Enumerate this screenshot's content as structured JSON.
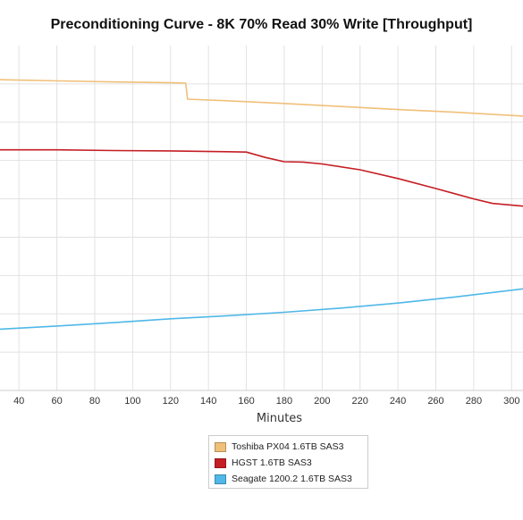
{
  "chart_data": {
    "type": "line",
    "title": "Preconditioning Curve - 8K 70% Read 30% Write [Throughput]",
    "xlabel": "Minutes",
    "ylabel": "",
    "x_ticks": [
      40,
      60,
      80,
      100,
      120,
      140,
      160,
      180,
      200,
      220,
      240,
      260,
      280,
      300
    ],
    "xlim": [
      30,
      306
    ],
    "ylim": [
      0,
      9
    ],
    "y_gridlines": [
      1,
      2,
      3,
      4,
      5,
      6,
      7,
      8
    ],
    "grid": true,
    "legend_position": "bottom-center",
    "series": [
      {
        "name": "Toshiba PX04 1.6TB SAS3",
        "color": "#f0c07a",
        "x": [
          30,
          60,
          90,
          120,
          128,
          129,
          150,
          180,
          210,
          240,
          270,
          306
        ],
        "y": [
          8.11,
          8.08,
          8.05,
          8.03,
          8.02,
          7.6,
          7.56,
          7.49,
          7.41,
          7.33,
          7.26,
          7.16
        ]
      },
      {
        "name": "HGST 1.6TB SAS3",
        "color": "#c41e24",
        "x": [
          30,
          60,
          90,
          120,
          150,
          160,
          170,
          180,
          190,
          200,
          220,
          240,
          260,
          280,
          290,
          306
        ],
        "y": [
          6.28,
          6.28,
          6.26,
          6.25,
          6.23,
          6.22,
          6.08,
          5.97,
          5.96,
          5.91,
          5.76,
          5.53,
          5.27,
          5.0,
          4.88,
          4.81
        ]
      },
      {
        "name": "Seagate 1200.2 1.6TB SAS3",
        "color": "#4fb8e8",
        "x": [
          30,
          60,
          90,
          120,
          150,
          180,
          210,
          240,
          270,
          306
        ],
        "y": [
          1.6,
          1.68,
          1.77,
          1.87,
          1.95,
          2.04,
          2.15,
          2.28,
          2.44,
          2.65
        ]
      }
    ]
  }
}
